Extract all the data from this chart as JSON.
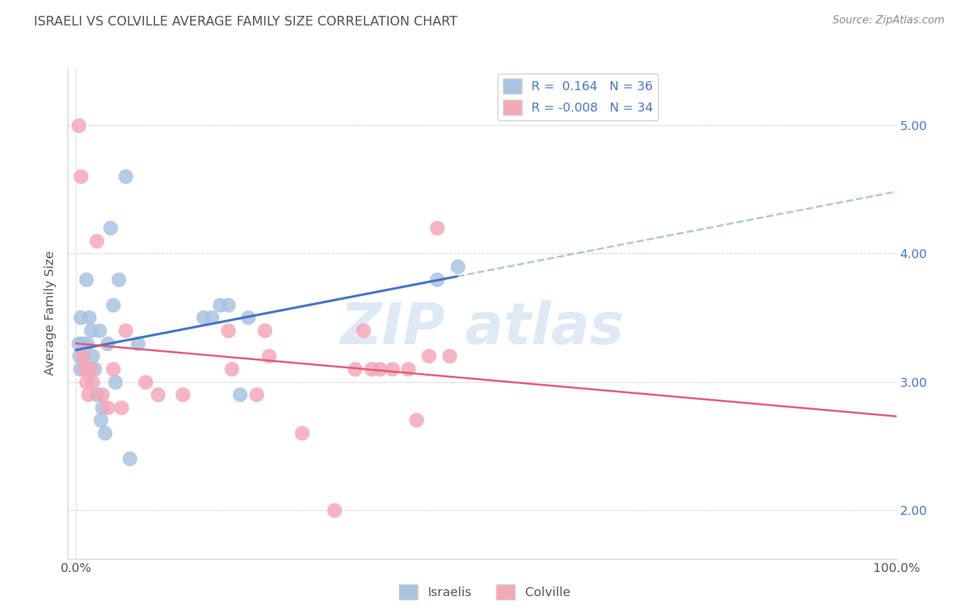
{
  "title": "ISRAELI VS COLVILLE AVERAGE FAMILY SIZE CORRELATION CHART",
  "ylabel": "Average Family Size",
  "source": "Source: ZipAtlas.com",
  "yticks": [
    2.0,
    3.0,
    4.0,
    5.0
  ],
  "xticklabels": [
    "0.0%",
    "100.0%"
  ],
  "israelis_color": "#a8c4e0",
  "colville_color": "#f4a8b8",
  "trend_israeli_solid_color": "#4472C4",
  "trend_israeli_dashed_color": "#b0c4d8",
  "trend_colville_color": "#e05878",
  "grid_color": "#cccccc",
  "title_color": "#505050",
  "israelis_x": [
    0.003,
    0.004,
    0.005,
    0.006,
    0.007,
    0.008,
    0.009,
    0.01,
    0.012,
    0.013,
    0.015,
    0.016,
    0.018,
    0.02,
    0.022,
    0.025,
    0.028,
    0.03,
    0.032,
    0.035,
    0.038,
    0.042,
    0.045,
    0.048,
    0.052,
    0.06,
    0.065,
    0.075,
    0.155,
    0.165,
    0.175,
    0.185,
    0.2,
    0.21,
    0.44,
    0.465
  ],
  "israelis_y": [
    3.3,
    3.2,
    3.1,
    3.5,
    3.3,
    3.3,
    3.2,
    3.1,
    3.8,
    3.3,
    3.1,
    3.5,
    3.4,
    3.2,
    3.1,
    2.9,
    3.4,
    2.7,
    2.8,
    2.6,
    3.3,
    4.2,
    3.6,
    3.0,
    3.8,
    4.6,
    2.4,
    3.3,
    3.5,
    3.5,
    3.6,
    3.6,
    2.9,
    3.5,
    3.8,
    3.9
  ],
  "colville_x": [
    0.003,
    0.006,
    0.008,
    0.01,
    0.012,
    0.015,
    0.018,
    0.02,
    0.025,
    0.032,
    0.038,
    0.045,
    0.055,
    0.06,
    0.085,
    0.1,
    0.13,
    0.185,
    0.19,
    0.22,
    0.23,
    0.235,
    0.275,
    0.315,
    0.34,
    0.35,
    0.36,
    0.37,
    0.385,
    0.405,
    0.415,
    0.43,
    0.44,
    0.455
  ],
  "colville_y": [
    5.0,
    4.6,
    3.2,
    3.1,
    3.0,
    2.9,
    3.1,
    3.0,
    4.1,
    2.9,
    2.8,
    3.1,
    2.8,
    3.4,
    3.0,
    2.9,
    2.9,
    3.4,
    3.1,
    2.9,
    3.4,
    3.2,
    2.6,
    2.0,
    3.1,
    3.4,
    3.1,
    3.1,
    3.1,
    3.1,
    2.7,
    3.2,
    4.2,
    3.2
  ]
}
